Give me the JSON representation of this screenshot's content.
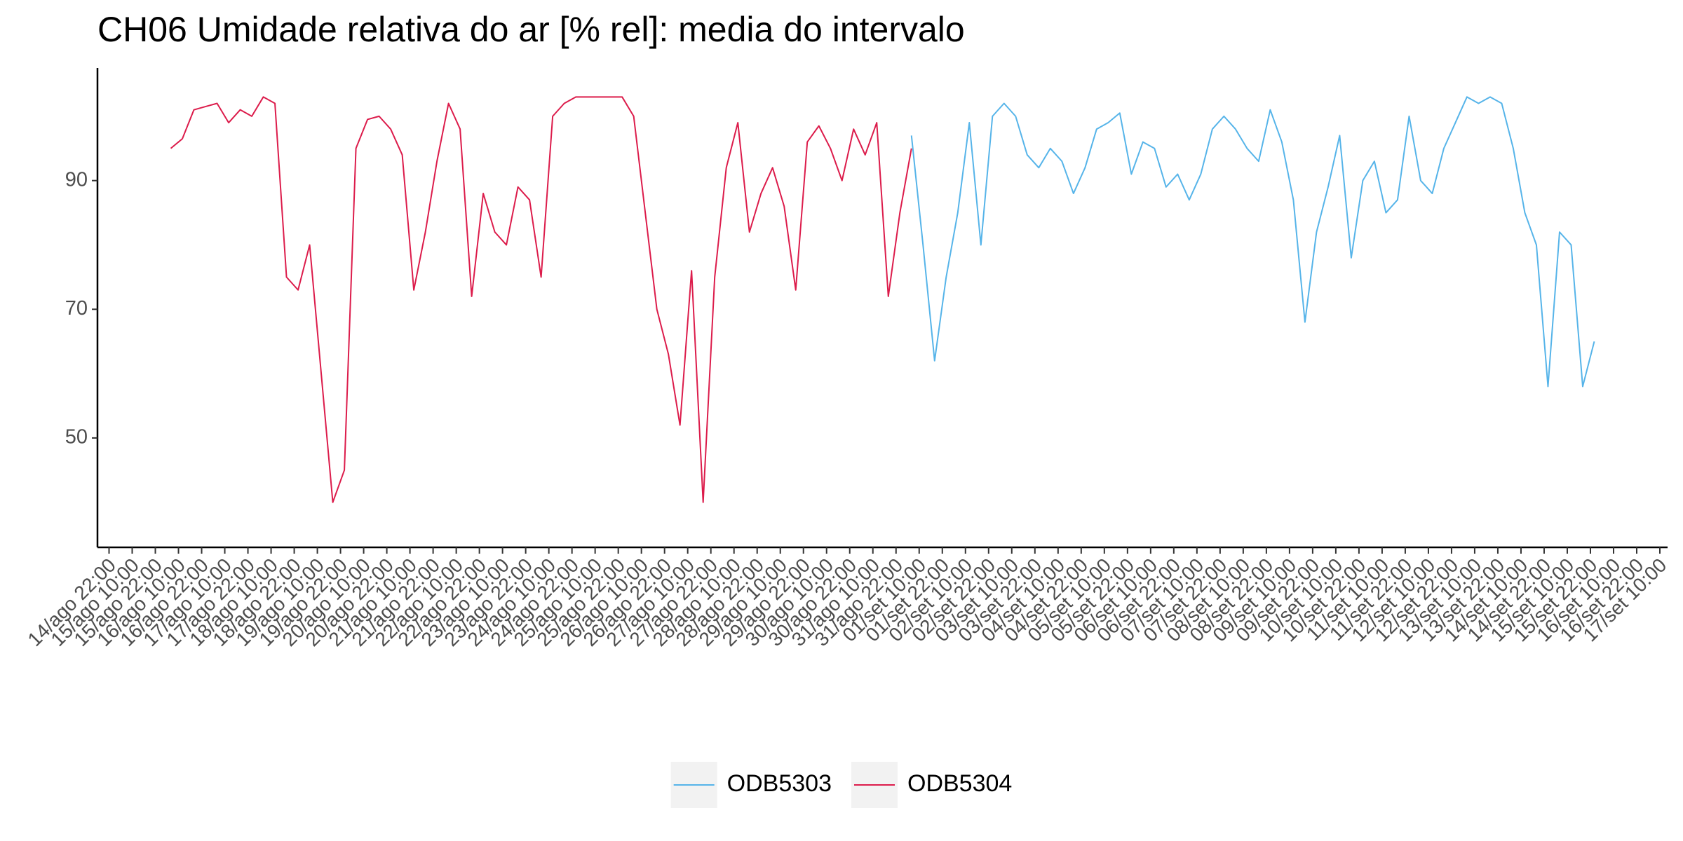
{
  "chart_data": {
    "type": "line",
    "title": "CH06 Umidade relativa do ar [% rel]: media do intervalo",
    "x": [
      "16/ago 06:00",
      "16/ago 12:00",
      "16/ago 18:00",
      "17/ago 00:00",
      "17/ago 06:00",
      "17/ago 12:00",
      "17/ago 18:00",
      "18/ago 00:00",
      "18/ago 06:00",
      "18/ago 12:00",
      "18/ago 18:00",
      "19/ago 00:00",
      "19/ago 06:00",
      "19/ago 12:00",
      "19/ago 18:00",
      "20/ago 00:00",
      "20/ago 06:00",
      "20/ago 12:00",
      "20/ago 18:00",
      "21/ago 00:00",
      "21/ago 06:00",
      "21/ago 12:00",
      "21/ago 18:00",
      "22/ago 00:00",
      "22/ago 06:00",
      "22/ago 12:00",
      "22/ago 18:00",
      "23/ago 00:00",
      "23/ago 06:00",
      "23/ago 12:00",
      "23/ago 18:00",
      "24/ago 00:00",
      "24/ago 06:00",
      "24/ago 12:00",
      "24/ago 18:00",
      "25/ago 00:00",
      "25/ago 06:00",
      "25/ago 12:00",
      "25/ago 18:00",
      "26/ago 00:00",
      "26/ago 06:00",
      "26/ago 12:00",
      "26/ago 18:00",
      "27/ago 00:00",
      "27/ago 06:00",
      "27/ago 12:00",
      "27/ago 18:00",
      "28/ago 00:00",
      "28/ago 06:00",
      "28/ago 12:00",
      "28/ago 18:00",
      "29/ago 00:00",
      "29/ago 06:00",
      "29/ago 12:00",
      "29/ago 18:00",
      "30/ago 00:00",
      "30/ago 06:00",
      "30/ago 12:00",
      "30/ago 18:00",
      "31/ago 00:00",
      "31/ago 06:00",
      "31/ago 12:00",
      "31/ago 18:00",
      "01/set 00:00",
      "01/set 06:00",
      "01/set 12:00",
      "01/set 18:00",
      "02/set 00:00",
      "02/set 06:00",
      "02/set 12:00",
      "02/set 18:00",
      "03/set 00:00",
      "03/set 06:00",
      "03/set 12:00",
      "03/set 18:00",
      "04/set 00:00",
      "04/set 06:00",
      "04/set 12:00",
      "04/set 18:00",
      "05/set 00:00",
      "05/set 06:00",
      "05/set 12:00",
      "05/set 18:00",
      "06/set 00:00",
      "06/set 06:00",
      "06/set 12:00",
      "06/set 18:00",
      "07/set 00:00",
      "07/set 06:00",
      "07/set 12:00",
      "07/set 18:00",
      "08/set 00:00",
      "08/set 06:00",
      "08/set 12:00",
      "08/set 18:00",
      "09/set 00:00",
      "09/set 06:00",
      "09/set 12:00",
      "09/set 18:00",
      "10/set 00:00",
      "10/set 06:00",
      "10/set 12:00",
      "10/set 18:00",
      "11/set 00:00",
      "11/set 06:00",
      "11/set 12:00",
      "11/set 18:00",
      "12/set 00:00",
      "12/set 06:00",
      "12/set 12:00",
      "12/set 18:00",
      "13/set 00:00",
      "13/set 06:00",
      "13/set 12:00",
      "13/set 18:00",
      "14/set 00:00",
      "14/set 06:00",
      "14/set 12:00",
      "14/set 18:00",
      "15/set 00:00",
      "15/set 06:00",
      "15/set 12:00",
      "15/set 18:00",
      "16/set 00:00"
    ],
    "series": [
      {
        "name": "ODB5303",
        "color": "#56b4e9",
        "values": [
          null,
          null,
          null,
          null,
          null,
          null,
          null,
          null,
          null,
          null,
          null,
          null,
          null,
          null,
          null,
          null,
          null,
          null,
          null,
          null,
          null,
          null,
          null,
          null,
          null,
          null,
          null,
          null,
          null,
          null,
          null,
          null,
          null,
          null,
          null,
          null,
          null,
          null,
          null,
          null,
          null,
          null,
          null,
          null,
          null,
          null,
          null,
          null,
          null,
          null,
          null,
          null,
          null,
          null,
          null,
          null,
          null,
          null,
          null,
          null,
          null,
          null,
          null,
          null,
          97,
          80,
          62,
          75,
          85,
          99,
          80,
          100,
          102,
          100,
          94,
          92,
          95,
          93,
          88,
          92,
          98,
          99,
          100.5,
          91,
          96,
          95,
          89,
          91,
          87,
          91,
          98,
          100,
          98,
          95,
          93,
          101,
          96,
          87,
          68,
          82,
          89,
          97,
          78,
          90,
          93,
          85,
          87,
          100,
          90,
          88,
          95,
          99,
          103,
          102,
          103,
          102,
          95,
          85,
          80,
          58,
          82,
          80,
          58,
          65
        ]
      },
      {
        "name": "ODB5304",
        "color": "#dc1c4b",
        "values": [
          95,
          96.5,
          101,
          101.5,
          102,
          99,
          101,
          100,
          103,
          102,
          75,
          73,
          80,
          60,
          40,
          45,
          95,
          99.5,
          100,
          98,
          94,
          73,
          82,
          93,
          102,
          98,
          72,
          88,
          82,
          80,
          89,
          87,
          75,
          100,
          102,
          103,
          103,
          103,
          103,
          103,
          100,
          85,
          70,
          63,
          52,
          76,
          40,
          75,
          92,
          99,
          82,
          88,
          92,
          86,
          73,
          96,
          98.5,
          95,
          90,
          98,
          94,
          99,
          72,
          85,
          95,
          null,
          null,
          null,
          null,
          null,
          null,
          null,
          null,
          null,
          null,
          null,
          null,
          null,
          null,
          null,
          null,
          null,
          null,
          null,
          null,
          null,
          null,
          null,
          null,
          null,
          null,
          null,
          null,
          null,
          null,
          null,
          null,
          null,
          null,
          null,
          null,
          null,
          null,
          null,
          null,
          null,
          null,
          null,
          null,
          null,
          null,
          null,
          null,
          null,
          null,
          null,
          null,
          null,
          null,
          null,
          null,
          null,
          null,
          null
        ]
      }
    ],
    "xlim": [
      "14/ago 16:00",
      "17/set 14:00"
    ],
    "xticks": [
      "14/ago 22:00",
      "15/ago 10:00",
      "15/ago 22:00",
      "16/ago 10:00",
      "16/ago 22:00",
      "17/ago 10:00",
      "17/ago 22:00",
      "18/ago 10:00",
      "18/ago 22:00",
      "19/ago 10:00",
      "19/ago 22:00",
      "20/ago 10:00",
      "20/ago 22:00",
      "21/ago 10:00",
      "21/ago 22:00",
      "22/ago 10:00",
      "22/ago 22:00",
      "23/ago 10:00",
      "23/ago 22:00",
      "24/ago 10:00",
      "24/ago 22:00",
      "25/ago 10:00",
      "25/ago 22:00",
      "26/ago 10:00",
      "26/ago 22:00",
      "27/ago 10:00",
      "27/ago 22:00",
      "28/ago 10:00",
      "28/ago 22:00",
      "29/ago 10:00",
      "29/ago 22:00",
      "30/ago 10:00",
      "30/ago 22:00",
      "31/ago 10:00",
      "31/ago 22:00",
      "01/set 10:00",
      "01/set 22:00",
      "02/set 10:00",
      "02/set 22:00",
      "03/set 10:00",
      "03/set 22:00",
      "04/set 10:00",
      "04/set 22:00",
      "05/set 10:00",
      "05/set 22:00",
      "06/set 10:00",
      "06/set 22:00",
      "07/set 10:00",
      "07/set 22:00",
      "08/set 10:00",
      "08/set 22:00",
      "09/set 10:00",
      "09/set 22:00",
      "10/set 10:00",
      "10/set 22:00",
      "11/set 10:00",
      "11/set 22:00",
      "12/set 10:00",
      "12/set 22:00",
      "13/set 10:00",
      "13/set 22:00",
      "14/set 10:00",
      "14/set 22:00",
      "15/set 10:00",
      "15/set 22:00",
      "16/set 10:00",
      "16/set 22:00",
      "17/set 10:00"
    ],
    "ylim": [
      33,
      107.5
    ],
    "yticks": [
      50,
      70,
      90
    ],
    "grid": false,
    "legend": "bottom"
  }
}
